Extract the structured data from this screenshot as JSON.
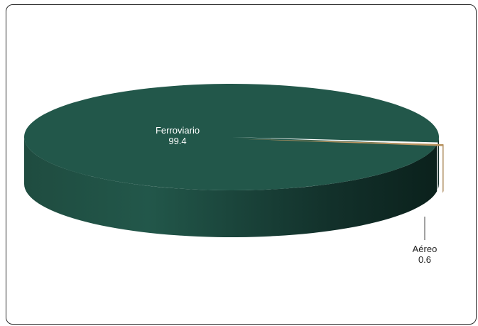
{
  "chart_data": {
    "type": "pie",
    "style": "3d",
    "slices": [
      {
        "label": "Ferroviario",
        "value": 99.4,
        "color": "#22574a"
      },
      {
        "label": "Aéreo",
        "value": 0.6,
        "color": "#b99460"
      }
    ]
  }
}
